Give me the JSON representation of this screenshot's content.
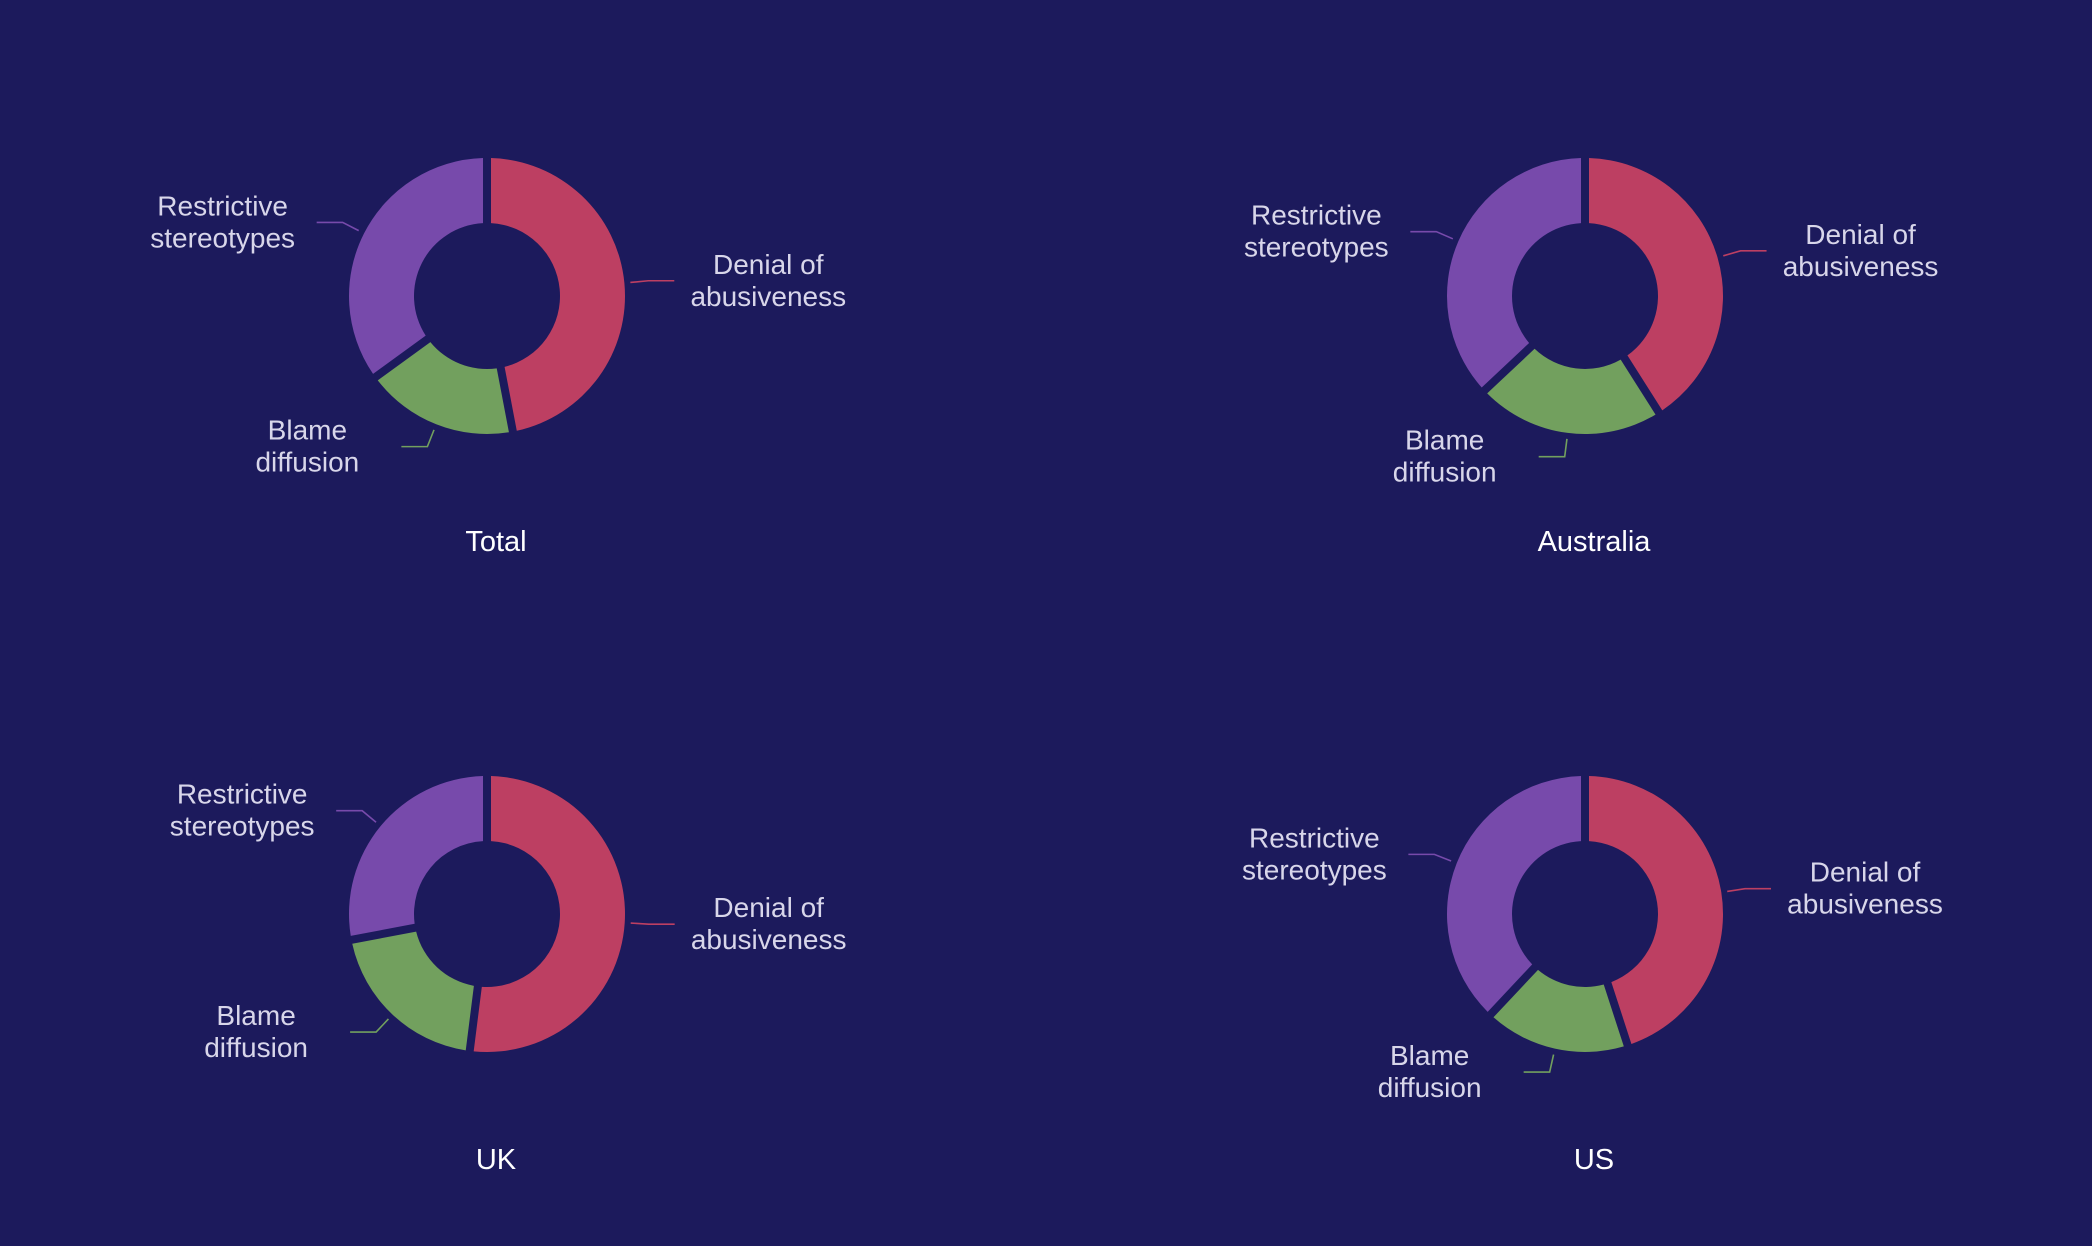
{
  "colors": {
    "background": "#1c1a5c",
    "denial": "#bd3f62",
    "blame": "#72a05e",
    "restrictive": "#774aab",
    "label_text": "#d8d6ea",
    "title_text": "#ffffff"
  },
  "chart_data": [
    {
      "type": "pie",
      "title": "Total",
      "slices": [
        {
          "label": "Denial of abusiveness",
          "color": "#bd3f62",
          "percent": 47
        },
        {
          "label": "Blame diffusion",
          "color": "#72a05e",
          "percent": 18
        },
        {
          "label": "Restrictive stereotypes",
          "color": "#774aab",
          "percent": 35
        }
      ]
    },
    {
      "type": "pie",
      "title": "Australia",
      "slices": [
        {
          "label": "Denial of abusiveness",
          "color": "#bd3f62",
          "percent": 41
        },
        {
          "label": "Blame diffusion",
          "color": "#72a05e",
          "percent": 22
        },
        {
          "label": "Restrictive stereotypes",
          "color": "#774aab",
          "percent": 37
        }
      ]
    },
    {
      "type": "pie",
      "title": "UK",
      "slices": [
        {
          "label": "Denial of abusiveness",
          "color": "#bd3f62",
          "percent": 52
        },
        {
          "label": "Blame diffusion",
          "color": "#72a05e",
          "percent": 20
        },
        {
          "label": "Restrictive stereotypes",
          "color": "#774aab",
          "percent": 28
        }
      ]
    },
    {
      "type": "pie",
      "title": "US",
      "slices": [
        {
          "label": "Denial of abusiveness",
          "color": "#bd3f62",
          "percent": 45
        },
        {
          "label": "Blame diffusion",
          "color": "#72a05e",
          "percent": 17
        },
        {
          "label": "Restrictive stereotypes",
          "color": "#774aab",
          "percent": 38
        }
      ]
    }
  ]
}
